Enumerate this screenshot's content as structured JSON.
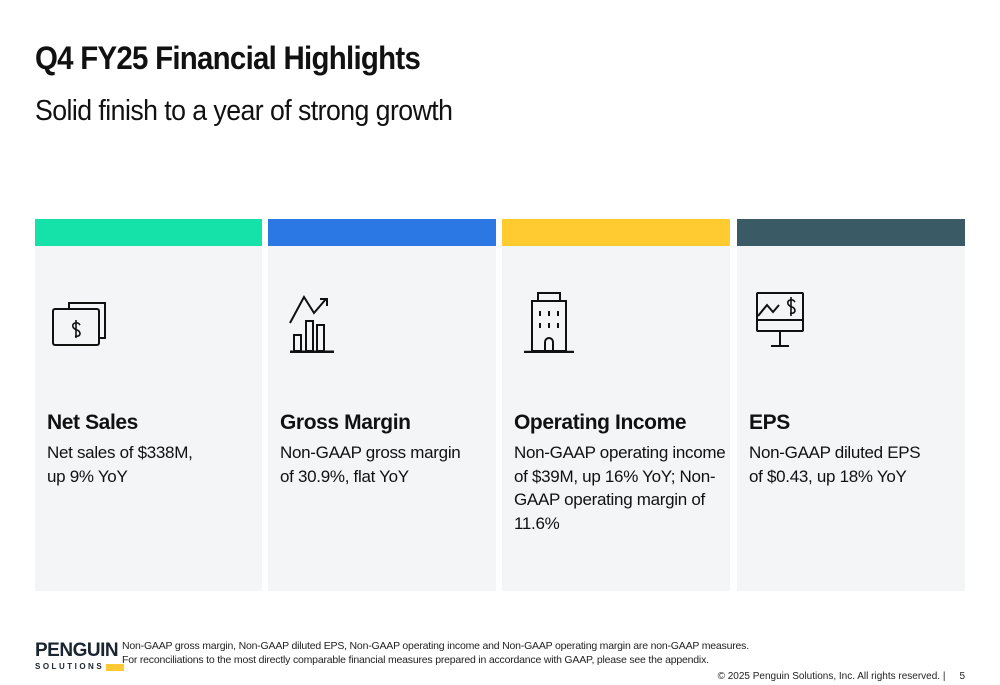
{
  "header": {
    "title": "Q4 FY25 Financial Highlights",
    "subtitle": "Solid finish to a year of strong growth"
  },
  "cards": [
    {
      "heading": "Net Sales",
      "body": "Net sales of $338M, up 9% YoY",
      "color": "#14e2a9",
      "icon": "money-bills-icon"
    },
    {
      "heading": "Gross Margin",
      "body": "Non-GAAP gross margin of 30.9%, flat YoY",
      "color": "#2b78e4",
      "icon": "bar-chart-trend-icon"
    },
    {
      "heading": "Operating Income",
      "body": "Non-GAAP operating income of $39M, up 16% YoY; Non-GAAP operating margin of 11.6%",
      "color": "#ffcb30",
      "icon": "office-building-icon"
    },
    {
      "heading": "EPS",
      "body": "Non-GAAP diluted EPS of $0.43, up 18% YoY",
      "color": "#3a5a66",
      "icon": "monitor-chart-dollar-icon"
    }
  ],
  "footer": {
    "logo": {
      "name": "PENGUIN",
      "sub": "SOLUTIONS"
    },
    "note_line1": "Non-GAAP gross margin, Non-GAAP diluted EPS, Non-GAAP operating income and Non-GAAP operating margin are non-GAAP measures.",
    "note_line2": "For reconciliations to the most directly comparable financial measures prepared in accordance with GAAP, please see the appendix.",
    "copyright": "© 2025 Penguin Solutions, Inc. All rights reserved.  |",
    "page": "5"
  }
}
